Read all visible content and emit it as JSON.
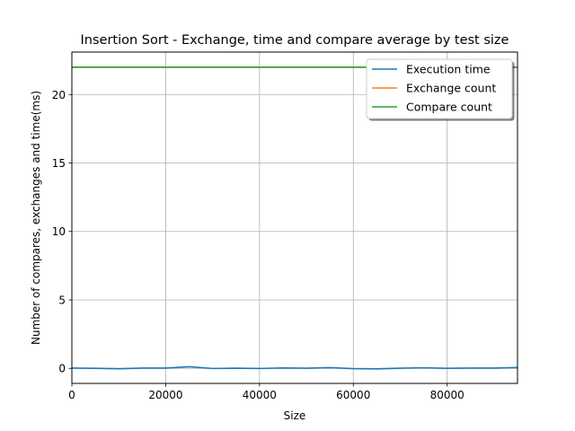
{
  "chart_data": {
    "type": "line",
    "title": "Insertion Sort - Exchange, time and compare average by test size",
    "xlabel": "Size",
    "ylabel": "Number of compares, exchanges and time(ms)",
    "xlim": [
      0,
      95000
    ],
    "ylim": [
      -1.1,
      23.1
    ],
    "xticks": [
      0,
      20000,
      40000,
      60000,
      80000
    ],
    "yticks": [
      0,
      5,
      10,
      15,
      20
    ],
    "grid": true,
    "legend_position": "top-right",
    "x": [
      0,
      5000,
      10000,
      15000,
      20000,
      25000,
      30000,
      35000,
      40000,
      45000,
      50000,
      55000,
      60000,
      65000,
      70000,
      75000,
      80000,
      85000,
      90000,
      95000
    ],
    "series": [
      {
        "name": "Execution time",
        "color": "#1f77b4",
        "values": [
          0.02,
          0.0,
          -0.03,
          0.02,
          0.02,
          0.12,
          -0.01,
          0.01,
          -0.01,
          0.03,
          0.01,
          0.05,
          -0.02,
          -0.04,
          0.01,
          0.04,
          0.0,
          0.02,
          0.02,
          0.06
        ]
      },
      {
        "name": "Exchange count",
        "color": "#ff7f0e",
        "values": [
          22,
          22,
          22,
          22,
          22,
          22,
          22,
          22,
          22,
          22,
          22,
          22,
          22,
          22,
          22,
          22,
          22,
          22,
          22,
          22
        ]
      },
      {
        "name": "Compare count",
        "color": "#2ca02c",
        "values": [
          22,
          22,
          22,
          22,
          22,
          22,
          22,
          22,
          22,
          22,
          22,
          22,
          22,
          22,
          22,
          22,
          22,
          22,
          22,
          22
        ]
      }
    ]
  }
}
